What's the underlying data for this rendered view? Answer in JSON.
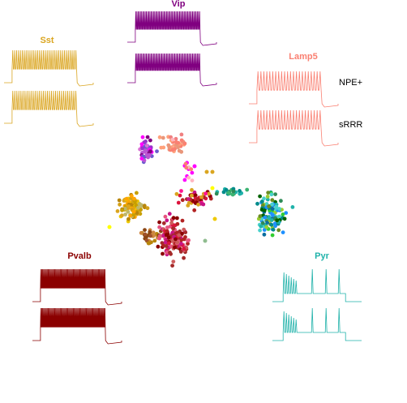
{
  "figure": {
    "description_title": "",
    "cell_types": [
      {
        "key": "vip",
        "label": "Vip",
        "color": "#800080"
      },
      {
        "key": "sst",
        "label": "Sst",
        "color": "#DAA520"
      },
      {
        "key": "lamp5",
        "label": "Lamp5",
        "color": "#FA8072"
      },
      {
        "key": "pvalb",
        "label": "Pvalb",
        "color": "#8B0000"
      },
      {
        "key": "pyr",
        "label": "Pyr",
        "color": "#20B2AA"
      }
    ],
    "side_labels": [
      "NPE+",
      "sRRR"
    ]
  }
}
